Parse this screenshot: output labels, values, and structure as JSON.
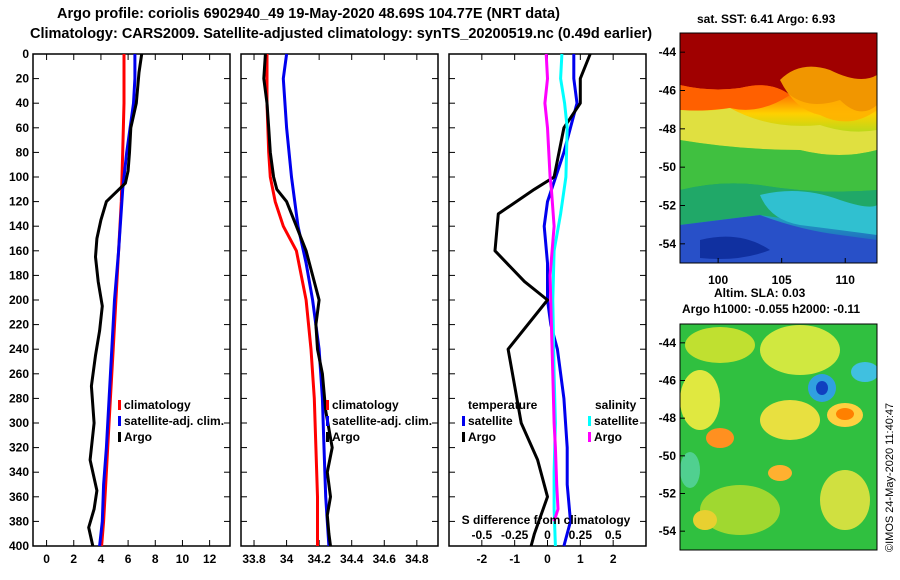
{
  "header": {
    "line1": "Argo profile: coriolis 6902940_49 19-May-2020 48.69S 104.77E (NRT data)",
    "line2": "Climatology: CARS2009. Satellite-adjusted climatology: synTS_20200519.nc (0.49d earlier)"
  },
  "colors": {
    "red": "#ff0000",
    "blue": "#0000ee",
    "black": "#000000",
    "cyan": "#00ffff",
    "magenta": "#ff00ff"
  },
  "chart_data": [
    {
      "type": "line",
      "name": "temperature",
      "xlim": [
        -1,
        13.5
      ],
      "ylim": [
        0,
        400
      ],
      "xticks": [
        0,
        2,
        4,
        6,
        8,
        10,
        12
      ],
      "yticks": [
        0,
        20,
        40,
        60,
        80,
        100,
        120,
        140,
        160,
        180,
        200,
        220,
        240,
        260,
        280,
        300,
        320,
        340,
        360,
        380,
        400
      ],
      "legend": {
        "climatology": "climatology",
        "satellite": "satellite-adj. clim.",
        "argo": "Argo"
      },
      "series": [
        {
          "name": "climatology",
          "color": "red",
          "x": [
            5.7,
            5.7,
            5.6,
            5.5,
            5.3,
            5.1,
            4.9,
            4.7,
            4.5,
            4.35,
            4.2,
            4.05
          ],
          "y": [
            0,
            40,
            80,
            120,
            160,
            200,
            240,
            280,
            320,
            350,
            380,
            400
          ]
        },
        {
          "name": "satellite-adj. clim.",
          "color": "blue",
          "x": [
            6.5,
            6.5,
            6.4,
            5.9,
            5.6,
            5.3,
            5.0,
            4.8,
            4.6,
            4.4,
            4.2,
            4.1,
            3.9
          ],
          "y": [
            0,
            20,
            40,
            80,
            110,
            160,
            200,
            240,
            280,
            320,
            350,
            380,
            400
          ]
        },
        {
          "name": "Argo",
          "color": "black",
          "x": [
            7.0,
            6.8,
            6.6,
            6.2,
            6.1,
            6.0,
            5.8,
            4.4,
            4.0,
            3.7,
            3.6,
            3.8,
            4.1,
            3.9,
            3.6,
            3.3,
            3.5,
            3.2,
            3.7,
            3.5,
            3.1,
            3.4
          ],
          "y": [
            0,
            15,
            40,
            60,
            80,
            95,
            105,
            120,
            135,
            150,
            165,
            185,
            205,
            225,
            245,
            270,
            300,
            330,
            355,
            370,
            385,
            400
          ]
        }
      ]
    },
    {
      "type": "line",
      "name": "salinity",
      "xlim": [
        33.72,
        34.93
      ],
      "ylim": [
        0,
        400
      ],
      "xticks": [
        33.8,
        34,
        34.2,
        34.4,
        34.6,
        34.8
      ],
      "xticklabels": [
        "33.8",
        "34",
        "34.2",
        "34.4",
        "34.6",
        "34.8"
      ],
      "legend": {
        "climatology": "climatology",
        "satellite": "satellite-adj. clim.",
        "argo": "Argo"
      },
      "series": [
        {
          "name": "climatology",
          "color": "red",
          "x": [
            33.88,
            33.88,
            33.89,
            33.9,
            33.93,
            33.98,
            34.06,
            34.12,
            34.15,
            34.17,
            34.18,
            34.19,
            34.19
          ],
          "y": [
            0,
            40,
            80,
            100,
            120,
            140,
            160,
            200,
            240,
            280,
            320,
            360,
            400
          ]
        },
        {
          "name": "satellite-adj. clim.",
          "color": "blue",
          "x": [
            34.0,
            33.98,
            34.0,
            34.03,
            34.07,
            34.12,
            34.16,
            34.2,
            34.22,
            34.23,
            34.24,
            34.25,
            34.26
          ],
          "y": [
            0,
            20,
            60,
            100,
            140,
            170,
            200,
            240,
            280,
            320,
            360,
            380,
            400
          ]
        },
        {
          "name": "Argo",
          "color": "black",
          "x": [
            33.87,
            33.86,
            33.88,
            33.89,
            33.9,
            33.92,
            33.94,
            34.0,
            34.06,
            34.12,
            34.16,
            34.2,
            34.18,
            34.19,
            34.22,
            34.24,
            34.28,
            34.25,
            34.27,
            34.25,
            34.26,
            34.27
          ],
          "y": [
            0,
            20,
            40,
            60,
            80,
            100,
            110,
            120,
            140,
            160,
            180,
            200,
            220,
            240,
            260,
            290,
            320,
            340,
            360,
            375,
            390,
            400
          ]
        }
      ]
    },
    {
      "type": "line",
      "name": "satellite-differences",
      "xlim": [
        -3,
        3
      ],
      "ylim": [
        0,
        400
      ],
      "xticks": [
        -2,
        -1,
        0,
        1,
        2
      ],
      "s_axis": {
        "label": "S difference from climatology",
        "ticks": [
          -0.5,
          -0.25,
          0,
          0.25,
          0.5
        ],
        "ticklabels": [
          "-0.5",
          "-0.25",
          "0",
          "0.25",
          "0.5"
        ],
        "xlim": [
          -0.75,
          0.75
        ]
      },
      "legend": {
        "temperature": "temperature",
        "salinity": "salinity",
        "satellite": "satellite",
        "argo": "Argo"
      },
      "series": [
        {
          "name": "temperature satellite",
          "color": "blue",
          "x": [
            0.8,
            0.8,
            0.9,
            0.5,
            0.0,
            -0.1,
            0.0,
            0.0,
            0.1,
            0.3,
            0.5,
            0.6,
            0.6,
            0.7,
            0.5
          ],
          "y": [
            0,
            20,
            40,
            80,
            120,
            140,
            170,
            200,
            220,
            240,
            280,
            320,
            350,
            380,
            400
          ]
        },
        {
          "name": "temperature Argo",
          "color": "black",
          "x": [
            1.3,
            1.0,
            1.0,
            0.5,
            0.2,
            -0.4,
            -1.5,
            -1.6,
            -0.7,
            0.0,
            -1.2,
            -1.0,
            -0.8,
            -0.3,
            0.0,
            -0.4,
            -0.5
          ],
          "y": [
            0,
            20,
            40,
            60,
            100,
            110,
            130,
            160,
            185,
            200,
            240,
            270,
            300,
            330,
            360,
            390,
            400
          ]
        },
        {
          "name": "salinity satellite",
          "color": "cyan",
          "x": [
            0.11,
            0.1,
            0.13,
            0.15,
            0.14,
            0.1,
            0.05,
            0.04,
            0.05,
            0.06,
            0.05,
            0.05,
            0.06
          ],
          "y": [
            0,
            20,
            40,
            60,
            100,
            130,
            160,
            200,
            260,
            300,
            340,
            370,
            400
          ]
        },
        {
          "name": "salinity Argo",
          "color": "magenta",
          "x": [
            -0.01,
            0.0,
            -0.02,
            0.0,
            0.02,
            0.03,
            0.05,
            0.02,
            0.03,
            0.04,
            0.05,
            0.06,
            0.07,
            0.08,
            0.05
          ],
          "y": [
            0,
            20,
            40,
            60,
            100,
            110,
            140,
            180,
            220,
            260,
            300,
            320,
            350,
            370,
            380
          ]
        }
      ]
    },
    {
      "type": "heatmap",
      "name": "sst-map",
      "title": "sat. SST: 6.41 Argo: 6.93",
      "xlim": [
        97,
        112.5
      ],
      "ylim": [
        -55,
        -43
      ],
      "xticks": [
        100,
        105,
        110
      ],
      "yticks": [
        -44,
        -46,
        -48,
        -50,
        -52,
        -54
      ]
    },
    {
      "type": "heatmap",
      "name": "sla-map",
      "title_line1": "Altim. SLA: 0.03",
      "title_line2": "Argo h1000: -0.055 h2000: -0.11",
      "ylim": [
        -55,
        -43
      ],
      "yticks": [
        -44,
        -46,
        -48,
        -50,
        -52,
        -54
      ]
    }
  ],
  "stamp": "©IMOS 24-May-2020 11:40:47"
}
